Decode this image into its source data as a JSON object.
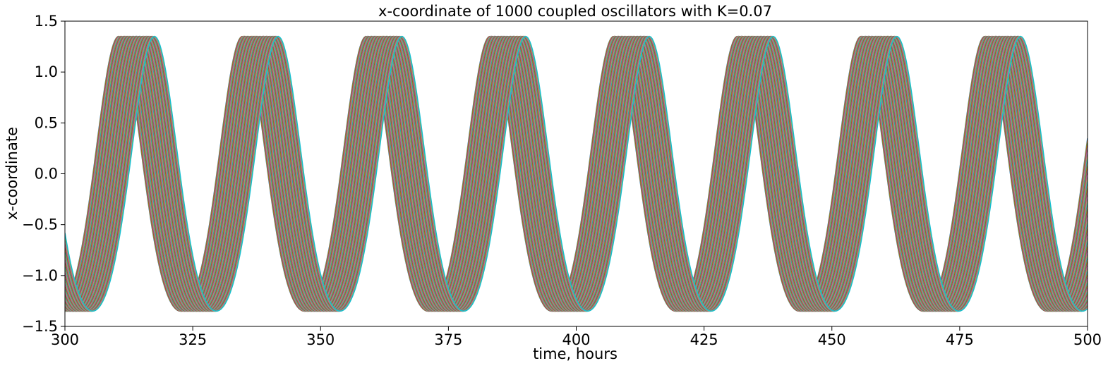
{
  "chart_data": {
    "type": "line",
    "title": "x-coordinate of 1000 coupled oscillators with K=0.07",
    "xlabel": "time, hours",
    "ylabel": "x-coordinate",
    "xlim": [
      300,
      500
    ],
    "ylim": [
      -1.5,
      1.5
    ],
    "xticks": [
      300,
      325,
      350,
      375,
      400,
      425,
      450,
      475,
      500
    ],
    "yticks": [
      -1.5,
      -1.0,
      -0.5,
      0.0,
      0.5,
      1.0,
      1.5
    ],
    "xtick_labels": [
      "300",
      "325",
      "350",
      "375",
      "400",
      "425",
      "450",
      "475",
      "500"
    ],
    "ytick_labels": [
      "−1.5",
      "−1.0",
      "−0.5",
      "0.0",
      "0.5",
      "1.0",
      "1.5"
    ],
    "grid": false,
    "legend": "none",
    "series_count": 1000,
    "period_hours": 24.2,
    "amplitude": 1.35,
    "first_peak_hours": [
      310.5,
      317.5
    ],
    "series_colors": [
      "#1f77b4",
      "#ff7f0e",
      "#2ca02c",
      "#d62728",
      "#9467bd",
      "#8c564b",
      "#e377c2",
      "#7f7f7f",
      "#bcbd22",
      "#17becf"
    ]
  }
}
